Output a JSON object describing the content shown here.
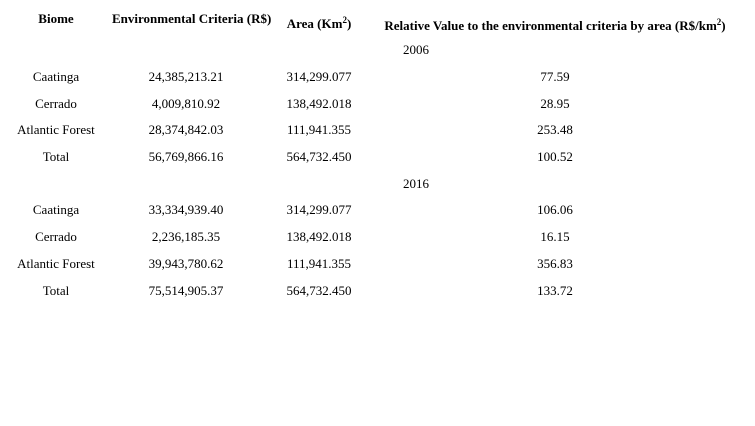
{
  "table": {
    "headers": [
      {
        "text": "Biome"
      },
      {
        "text": "Environmental Criteria (R$)"
      },
      {
        "pre": "Area (Km",
        "sup": "2",
        "post": ")"
      },
      {
        "pre": "Relative Value to the environmental criteria by area (R$/km",
        "sup": "2",
        "post": ")"
      }
    ],
    "sections": [
      {
        "year": "2006",
        "rows": [
          {
            "biome": "Caatinga",
            "criteria": "24,385,213.21",
            "area": "314,299.077",
            "relative": "77.59"
          },
          {
            "biome": "Cerrado",
            "criteria": "4,009,810.92",
            "area": "138,492.018",
            "relative": "28.95"
          },
          {
            "biome": "Atlantic Forest",
            "criteria": "28,374,842.03",
            "area": "111,941.355",
            "relative": "253.48"
          },
          {
            "biome": "Total",
            "criteria": "56,769,866.16",
            "area": "564,732.450",
            "relative": "100.52"
          }
        ]
      },
      {
        "year": "2016",
        "rows": [
          {
            "biome": "Caatinga",
            "criteria": "33,334,939.40",
            "area": "314,299.077",
            "relative": "106.06"
          },
          {
            "biome": "Cerrado",
            "criteria": "2,236,185.35",
            "area": "138,492.018",
            "relative": "16.15"
          },
          {
            "biome": "Atlantic Forest",
            "criteria": "39,943,780.62",
            "area": "111,941.355",
            "relative": "356.83"
          },
          {
            "biome": "Total",
            "criteria": "75,514,905.37",
            "area": "564,732.450",
            "relative": "133.72"
          }
        ]
      }
    ]
  },
  "chart_data": {
    "type": "table",
    "columns": [
      "Biome",
      "Environmental Criteria (R$)",
      "Area (Km2)",
      "Relative Value to the environmental criteria by area (R$/km2)"
    ],
    "groups": [
      {
        "label": "2006",
        "rows": [
          [
            "Caatinga",
            24385213.21,
            314299.077,
            77.59
          ],
          [
            "Cerrado",
            4009810.92,
            138492.018,
            28.95
          ],
          [
            "Atlantic Forest",
            28374842.03,
            111941.355,
            253.48
          ],
          [
            "Total",
            56769866.16,
            564732.45,
            100.52
          ]
        ]
      },
      {
        "label": "2016",
        "rows": [
          [
            "Caatinga",
            33334939.4,
            314299.077,
            106.06
          ],
          [
            "Cerrado",
            2236185.35,
            138492.018,
            16.15
          ],
          [
            "Atlantic Forest",
            39943780.62,
            111941.355,
            356.83
          ],
          [
            "Total",
            75514905.37,
            564732.45,
            133.72
          ]
        ]
      }
    ]
  },
  "colors": {
    "text": "#000000",
    "background": "#ffffff"
  }
}
